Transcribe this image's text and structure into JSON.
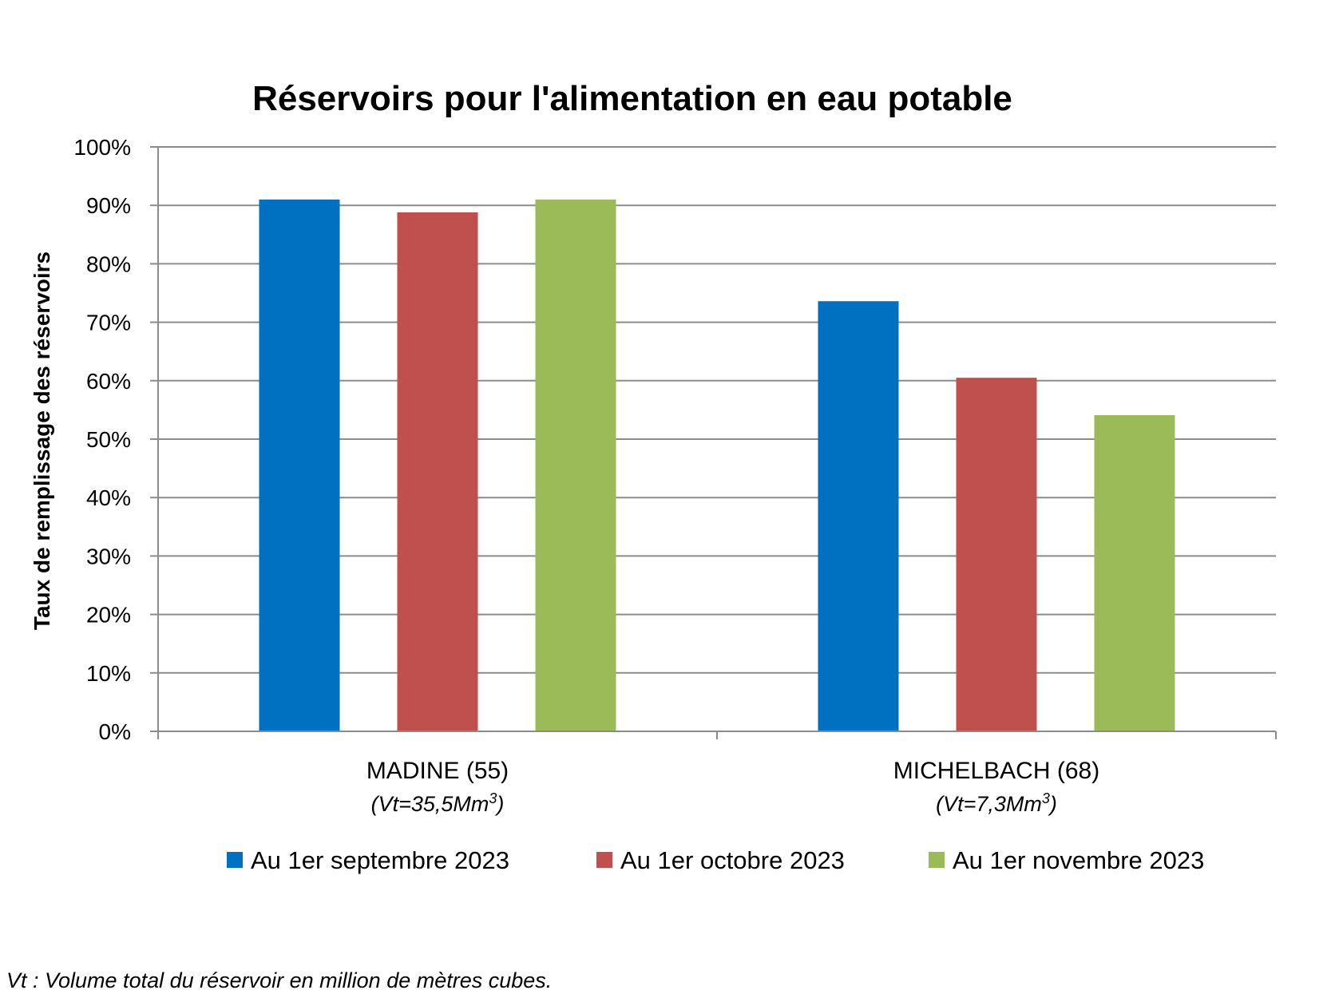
{
  "chart_data": {
    "type": "bar",
    "title": "Réservoirs pour l'alimentation en eau potable",
    "ylabel": "Taux de remplissage des réservoirs",
    "xlabel": "",
    "ylim": [
      0,
      100
    ],
    "y_ticks": [
      "0%",
      "10%",
      "20%",
      "30%",
      "40%",
      "50%",
      "60%",
      "70%",
      "80%",
      "90%",
      "100%"
    ],
    "grid": true,
    "legend_position": "bottom",
    "categories": [
      {
        "label": "MADINE (55)",
        "sub_prefix": "(Vt=35,5Mm",
        "sub_sup": "3",
        "sub_suffix": ")"
      },
      {
        "label": "MICHELBACH (68)",
        "sub_prefix": "(Vt=7,3Mm",
        "sub_sup": "3",
        "sub_suffix": ")"
      }
    ],
    "series": [
      {
        "name": "Au 1er septembre 2023",
        "color": "#0070C0",
        "values": [
          91,
          73.6
        ]
      },
      {
        "name": "Au 1er octobre 2023",
        "color": "#C0504D",
        "values": [
          88.8,
          60.5
        ]
      },
      {
        "name": "Au 1er novembre 2023",
        "color": "#9BBB59",
        "values": [
          91,
          54.1
        ]
      }
    ]
  },
  "footnote": "Vt : Volume total du réservoir en million de mètres cubes."
}
